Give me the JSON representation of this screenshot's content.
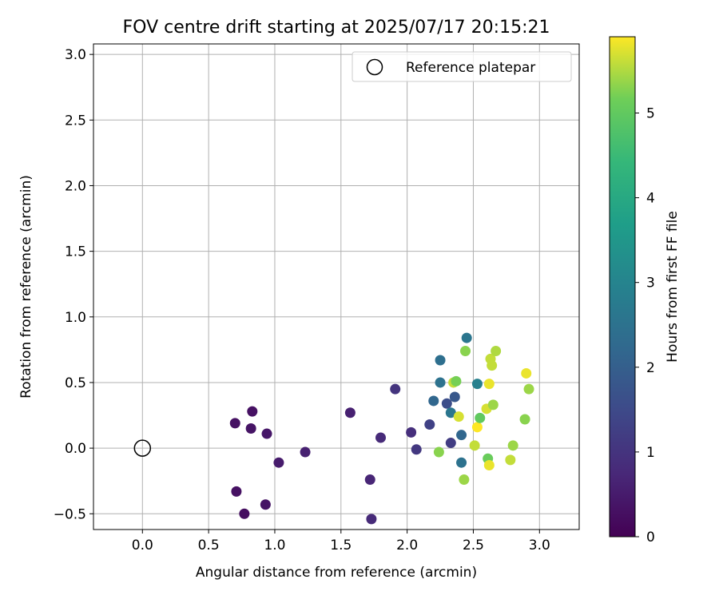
{
  "chart_data": {
    "type": "scatter",
    "title": "FOV centre drift starting at 2025/07/17 20:15:21",
    "xlabel": "Angular distance from reference (arcmin)",
    "ylabel": "Rotation from reference (arcmin)",
    "xlim": [
      -0.37,
      3.3
    ],
    "ylim": [
      -0.62,
      3.08
    ],
    "xticks": [
      "0.0",
      "0.5",
      "1.0",
      "1.5",
      "2.0",
      "2.5",
      "3.0"
    ],
    "yticks": [
      "−0.5",
      "0.0",
      "0.5",
      "1.0",
      "1.5",
      "2.0",
      "2.5",
      "3.0"
    ],
    "grid": true,
    "legend": {
      "position": "top-right",
      "entries": [
        "Reference platepar"
      ]
    },
    "reference": {
      "x": 0.0,
      "y": 0.0,
      "marker": "open-circle"
    },
    "colorbar": {
      "label": "Hours from first FF file",
      "range": [
        0,
        5.9
      ],
      "ticks": [
        "0",
        "1",
        "2",
        "3",
        "4",
        "5"
      ],
      "colormap": "viridis"
    },
    "points": [
      {
        "x": 0.7,
        "y": 0.19,
        "t": 0.3
      },
      {
        "x": 0.83,
        "y": 0.28,
        "t": 0.3
      },
      {
        "x": 0.82,
        "y": 0.15,
        "t": 0.35
      },
      {
        "x": 0.94,
        "y": 0.11,
        "t": 0.4
      },
      {
        "x": 0.71,
        "y": -0.33,
        "t": 0.3
      },
      {
        "x": 0.77,
        "y": -0.5,
        "t": 0.25
      },
      {
        "x": 0.93,
        "y": -0.43,
        "t": 0.35
      },
      {
        "x": 1.03,
        "y": -0.11,
        "t": 0.5
      },
      {
        "x": 1.23,
        "y": -0.03,
        "t": 0.6
      },
      {
        "x": 1.57,
        "y": 0.27,
        "t": 0.6
      },
      {
        "x": 1.72,
        "y": -0.24,
        "t": 0.7
      },
      {
        "x": 1.73,
        "y": -0.54,
        "t": 0.8
      },
      {
        "x": 1.8,
        "y": 0.08,
        "t": 0.8
      },
      {
        "x": 1.91,
        "y": 0.45,
        "t": 1.0
      },
      {
        "x": 2.03,
        "y": 0.12,
        "t": 0.9
      },
      {
        "x": 2.07,
        "y": -0.01,
        "t": 1.1
      },
      {
        "x": 2.17,
        "y": 0.18,
        "t": 1.3
      },
      {
        "x": 2.2,
        "y": 0.36,
        "t": 2.2
      },
      {
        "x": 2.25,
        "y": 0.5,
        "t": 2.5
      },
      {
        "x": 2.25,
        "y": 0.67,
        "t": 2.4
      },
      {
        "x": 2.24,
        "y": -0.03,
        "t": 5.3
      },
      {
        "x": 2.3,
        "y": 0.34,
        "t": 1.6
      },
      {
        "x": 2.33,
        "y": 0.27,
        "t": 2.6
      },
      {
        "x": 2.33,
        "y": 0.04,
        "t": 1.2
      },
      {
        "x": 2.35,
        "y": 0.5,
        "t": 5.6
      },
      {
        "x": 2.36,
        "y": 0.39,
        "t": 1.8
      },
      {
        "x": 2.37,
        "y": 0.51,
        "t": 5.2
      },
      {
        "x": 2.39,
        "y": 0.24,
        "t": 5.7
      },
      {
        "x": 2.41,
        "y": 0.1,
        "t": 2.2
      },
      {
        "x": 2.41,
        "y": -0.11,
        "t": 2.5
      },
      {
        "x": 2.43,
        "y": -0.24,
        "t": 5.4
      },
      {
        "x": 2.44,
        "y": 0.74,
        "t": 5.3
      },
      {
        "x": 2.45,
        "y": 0.84,
        "t": 2.6
      },
      {
        "x": 2.51,
        "y": 0.02,
        "t": 5.6
      },
      {
        "x": 2.53,
        "y": 0.16,
        "t": 5.9
      },
      {
        "x": 2.53,
        "y": 0.49,
        "t": 2.9
      },
      {
        "x": 2.55,
        "y": 0.23,
        "t": 5.0
      },
      {
        "x": 2.6,
        "y": 0.3,
        "t": 5.7
      },
      {
        "x": 2.61,
        "y": -0.08,
        "t": 5.1
      },
      {
        "x": 2.62,
        "y": 0.49,
        "t": 5.8
      },
      {
        "x": 2.62,
        "y": -0.13,
        "t": 5.8
      },
      {
        "x": 2.63,
        "y": 0.68,
        "t": 5.6
      },
      {
        "x": 2.64,
        "y": 0.63,
        "t": 5.6
      },
      {
        "x": 2.65,
        "y": 0.33,
        "t": 5.4
      },
      {
        "x": 2.67,
        "y": 0.74,
        "t": 5.5
      },
      {
        "x": 2.78,
        "y": -0.09,
        "t": 5.6
      },
      {
        "x": 2.8,
        "y": 0.02,
        "t": 5.4
      },
      {
        "x": 2.89,
        "y": 0.22,
        "t": 5.3
      },
      {
        "x": 2.9,
        "y": 0.57,
        "t": 5.8
      },
      {
        "x": 2.92,
        "y": 0.45,
        "t": 5.4
      }
    ]
  }
}
